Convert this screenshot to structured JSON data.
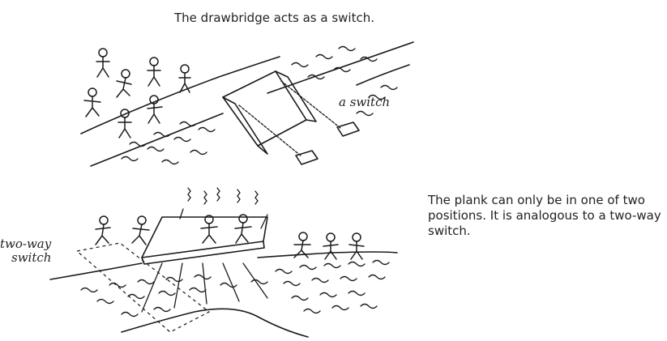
{
  "top_caption": "The drawbridge acts as a switch.",
  "switch_label": "a switch",
  "two_way_label_line1": "two-way",
  "two_way_label_line2": "switch",
  "plank_caption": "The plank can only be in one of two positions. It is analogous to a two-way switch."
}
